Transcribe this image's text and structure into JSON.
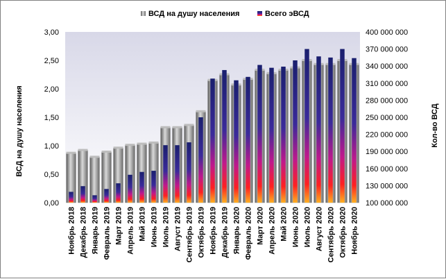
{
  "chart_data": {
    "type": "bar",
    "categories": [
      "Ноябрь 2018",
      "Декабрь 2018",
      "Январь 2019",
      "Февраль 2019",
      "Март 2019",
      "Апрель 2019",
      "Май 2019",
      "Июнь 2019",
      "Июль 2019",
      "Август 2019",
      "Сентябрь 2019",
      "Октябрь 2019",
      "Ноябрь 2019",
      "Декабрь 2019",
      "Январь 2020",
      "Февраль 2020",
      "Март 2020",
      "Апрель 2020",
      "Май 2020",
      "Июнь 2020",
      "Июль 2020",
      "Август 2020",
      "Сентябрь 2020",
      "Октябрь 2020",
      "Ноябрь 2020"
    ],
    "series": [
      {
        "name": "ВСД на душу населения",
        "axis": "left",
        "color": "#808080",
        "values": [
          0.87,
          0.92,
          0.8,
          0.89,
          0.96,
          1.01,
          1.03,
          1.05,
          1.32,
          1.32,
          1.36,
          1.6,
          2.15,
          2.25,
          2.07,
          2.17,
          2.33,
          2.27,
          2.33,
          2.37,
          2.5,
          2.43,
          2.43,
          2.5,
          2.43
        ]
      },
      {
        "name": "Всего эВСД",
        "axis": "right",
        "color": "#1a237e",
        "values": [
          119000000,
          129000000,
          113000000,
          124000000,
          134000000,
          149000000,
          154000000,
          156000000,
          201000000,
          201000000,
          206000000,
          250000000,
          318000000,
          333000000,
          315000000,
          321000000,
          342000000,
          337000000,
          339000000,
          350000000,
          370000000,
          357000000,
          355000000,
          370000000,
          354000000
        ]
      }
    ],
    "y_left": {
      "label": "ВСД на душу населения",
      "ylim": [
        0,
        3
      ],
      "ticks": [
        "0,00",
        "0,50",
        "1,00",
        "1,50",
        "2,00",
        "2,50",
        "3,00"
      ]
    },
    "y_right": {
      "label": "Кол-во ВСД",
      "ylim": [
        100000000,
        400000000
      ],
      "ticks": [
        "100 000 000",
        "130 000 000",
        "160 000 000",
        "190 000 000",
        "220 000 000",
        "250 000 000",
        "280 000 000",
        "310 000 000",
        "340 000 000",
        "370 000 000",
        "400 000 000"
      ]
    },
    "legend_position": "top",
    "grid": false
  }
}
